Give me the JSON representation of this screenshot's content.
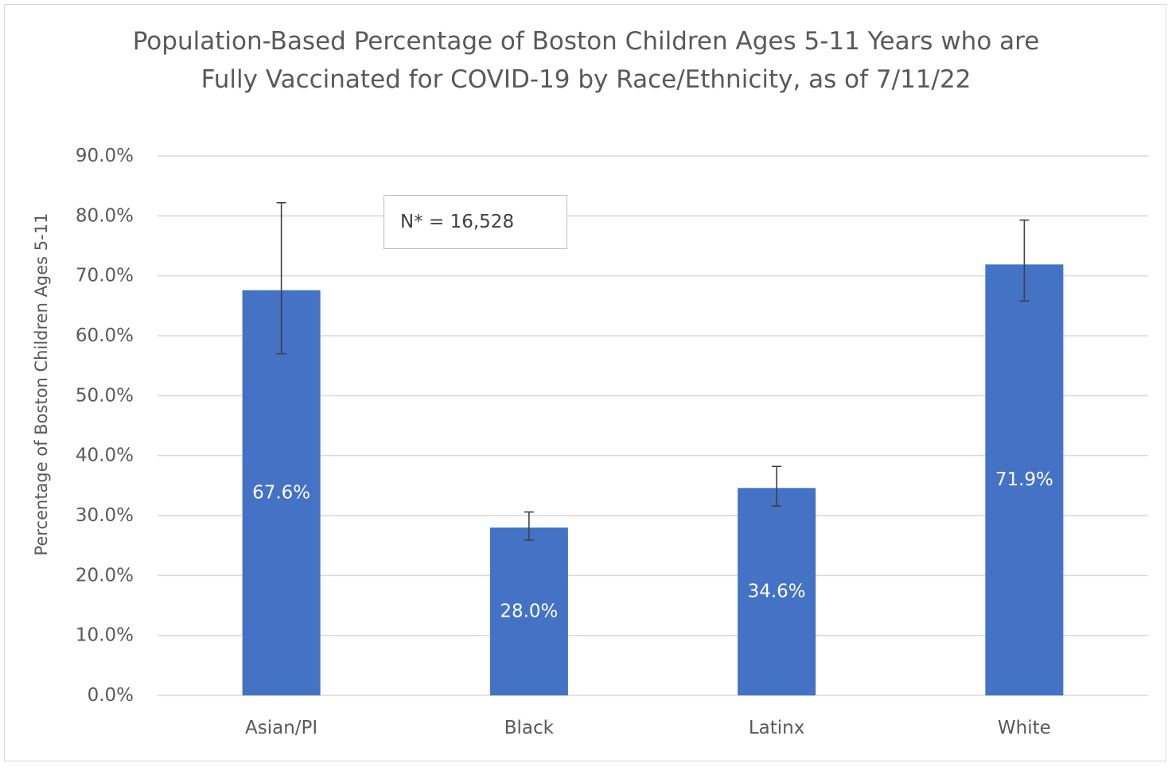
{
  "chart_data": {
    "type": "bar",
    "title_lines": [
      "Population-Based Percentage of Boston Children Ages 5-11 Years who are",
      "Fully Vaccinated for COVID-19 by Race/Ethnicity, as of 7/11/22"
    ],
    "xlabel": "",
    "ylabel": "Percentage of Boston Children Ages 5-11",
    "categories": [
      "Asian/PI",
      "Black",
      "Latinx",
      "White"
    ],
    "values": [
      67.6,
      28.0,
      34.6,
      71.9
    ],
    "data_labels": [
      "67.6%",
      "28.0%",
      "34.6%",
      "71.9%"
    ],
    "error_bars": [
      {
        "low": 57.0,
        "high": 82.2
      },
      {
        "low": 25.9,
        "high": 30.6
      },
      {
        "low": 31.6,
        "high": 38.2
      },
      {
        "low": 65.8,
        "high": 79.3
      }
    ],
    "ylim": [
      0,
      90
    ],
    "yticks": [
      0,
      10,
      20,
      30,
      40,
      50,
      60,
      70,
      80,
      90
    ],
    "ytick_labels": [
      "0.0%",
      "10.0%",
      "20.0%",
      "30.0%",
      "40.0%",
      "50.0%",
      "60.0%",
      "70.0%",
      "80.0%",
      "90.0%"
    ],
    "grid": true,
    "legend": "none",
    "annotation": "N* = 16,528",
    "bar_color": "#4472c4",
    "grid_color": "#d9d9d9",
    "text_color": "#595959"
  }
}
